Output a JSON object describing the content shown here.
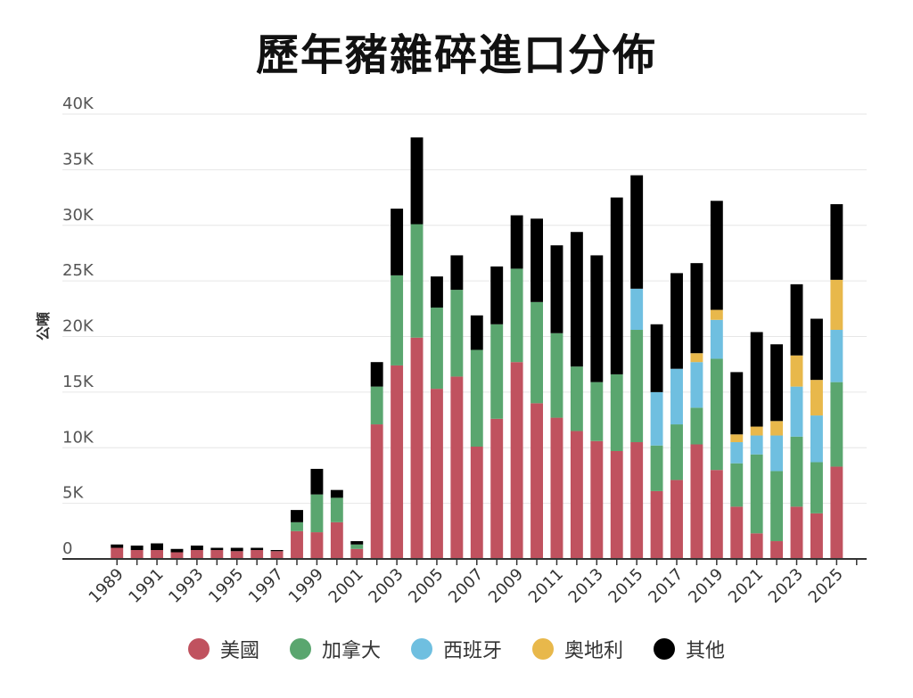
{
  "chart_data": {
    "type": "bar",
    "stacked": true,
    "title": "歷年豬雜碎進口分佈",
    "xlabel": "",
    "ylabel": "公噸",
    "ylim": [
      0,
      40000
    ],
    "yticks": [
      0,
      5000,
      10000,
      15000,
      20000,
      25000,
      30000,
      35000,
      40000
    ],
    "ytick_labels": [
      "0",
      "5K",
      "10K",
      "15K",
      "20K",
      "25K",
      "30K",
      "35K",
      "40K"
    ],
    "grid": true,
    "legend_position": "bottom",
    "categories": [
      "1989",
      "1990",
      "1991",
      "1992",
      "1993",
      "1994",
      "1995",
      "1996",
      "1997",
      "1998",
      "1999",
      "2000",
      "2001",
      "2002",
      "2003",
      "2004",
      "2005",
      "2006",
      "2007",
      "2008",
      "2009",
      "2010",
      "2011",
      "2012",
      "2013",
      "2014",
      "2015",
      "2016",
      "2017",
      "2018",
      "2019",
      "2020",
      "2021",
      "2022",
      "2023",
      "2024",
      "2025",
      "2026"
    ],
    "xtick_labels": [
      "1989",
      "",
      "1991",
      "",
      "1993",
      "",
      "1995",
      "",
      "1997",
      "",
      "1999",
      "",
      "2001",
      "",
      "2003",
      "",
      "2005",
      "",
      "2007",
      "",
      "2009",
      "",
      "2011",
      "",
      "2013",
      "",
      "2015",
      "",
      "2017",
      "",
      "2019",
      "",
      "2021",
      "",
      "2023",
      "",
      "2025",
      ""
    ],
    "series": [
      {
        "name": "美國",
        "color": "#c0525f",
        "values": [
          1000,
          800,
          800,
          600,
          800,
          800,
          700,
          800,
          700,
          2500,
          2400,
          3300,
          900,
          12100,
          17400,
          19900,
          15300,
          16400,
          10100,
          12600,
          17700,
          14000,
          12700,
          11500,
          10600,
          9700,
          10500,
          6100,
          7100,
          10300,
          8000,
          4700,
          2300,
          1600,
          4700,
          4100,
          8300,
          0
        ]
      },
      {
        "name": "加拿大",
        "color": "#5aa66f",
        "values": [
          0,
          0,
          0,
          0,
          0,
          0,
          0,
          0,
          0,
          800,
          3400,
          2200,
          400,
          3400,
          8100,
          10200,
          7300,
          7800,
          8700,
          8500,
          8400,
          9100,
          7600,
          5800,
          5300,
          6900,
          10100,
          4100,
          5000,
          3300,
          10000,
          3900,
          7100,
          6300,
          6300,
          4600,
          7600,
          0
        ]
      },
      {
        "name": "西班牙",
        "color": "#6fbfe0",
        "values": [
          0,
          0,
          0,
          0,
          0,
          0,
          0,
          0,
          0,
          0,
          0,
          0,
          0,
          0,
          0,
          0,
          0,
          0,
          0,
          0,
          0,
          0,
          0,
          0,
          0,
          0,
          3700,
          4800,
          5000,
          4100,
          3500,
          1900,
          1700,
          3200,
          4500,
          4200,
          4700,
          0
        ]
      },
      {
        "name": "奧地利",
        "color": "#e8b84b",
        "values": [
          0,
          0,
          0,
          0,
          0,
          0,
          0,
          0,
          0,
          0,
          0,
          0,
          0,
          0,
          0,
          0,
          0,
          0,
          0,
          0,
          0,
          0,
          0,
          0,
          0,
          0,
          0,
          0,
          0,
          800,
          900,
          700,
          800,
          1300,
          2800,
          3200,
          4500,
          0
        ]
      },
      {
        "name": "其他",
        "color": "#000000",
        "values": [
          300,
          400,
          600,
          300,
          400,
          200,
          300,
          200,
          100,
          1100,
          2300,
          700,
          300,
          2200,
          6000,
          7800,
          2800,
          3100,
          3100,
          5200,
          4800,
          7500,
          7900,
          12100,
          11400,
          15900,
          10200,
          6100,
          8600,
          8100,
          9800,
          5600,
          8500,
          6900,
          6400,
          5500,
          6800,
          0
        ]
      }
    ]
  }
}
